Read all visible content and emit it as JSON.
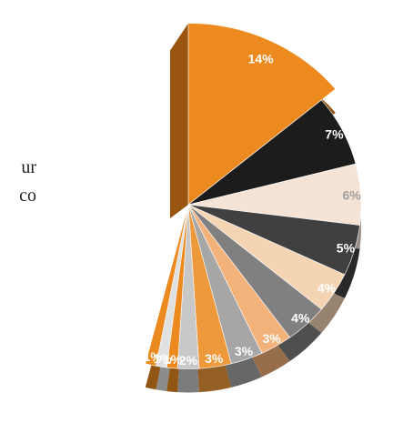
{
  "clipped_text": [
    "ur",
    "co"
  ],
  "chart_data": {
    "type": "pie",
    "style": "3d-exploded-partial",
    "start_angle_deg": 270,
    "slices": [
      {
        "label": "14%",
        "value": 14,
        "color": "#EC8A20",
        "text_color": "#ffffff"
      },
      {
        "label": "7%",
        "value": 7,
        "color": "#1C1C1C",
        "text_color": "#ffffff"
      },
      {
        "label": "6%",
        "value": 6,
        "color": "#F5E4D6",
        "text_color": "#A0A0A0"
      },
      {
        "label": "5%",
        "value": 5,
        "color": "#404040",
        "text_color": "#ffffff"
      },
      {
        "label": "4%",
        "value": 4,
        "color": "#F5D4B4",
        "text_color": "#ffffff"
      },
      {
        "label": "4%",
        "value": 4,
        "color": "#808080",
        "text_color": "#ffffff"
      },
      {
        "label": "3%",
        "value": 3,
        "color": "#F2B27A",
        "text_color": "#ffffff"
      },
      {
        "label": "3%",
        "value": 3,
        "color": "#A6A6A6",
        "text_color": "#ffffff"
      },
      {
        "label": "3%",
        "value": 3,
        "color": "#EE9A3C",
        "text_color": "#ffffff"
      },
      {
        "label": "2%",
        "value": 2,
        "color": "#C8C8C8",
        "text_color": "#ffffff"
      },
      {
        "label": "1%",
        "value": 1,
        "color": "#EC8A20",
        "text_color": "#ffffff"
      },
      {
        "label": "1%",
        "value": 1,
        "color": "#E0E0E0",
        "text_color": "#ffffff"
      },
      {
        "label": "1%",
        "value": 1,
        "color": "#EC8A20",
        "text_color": "#ffffff"
      }
    ]
  }
}
